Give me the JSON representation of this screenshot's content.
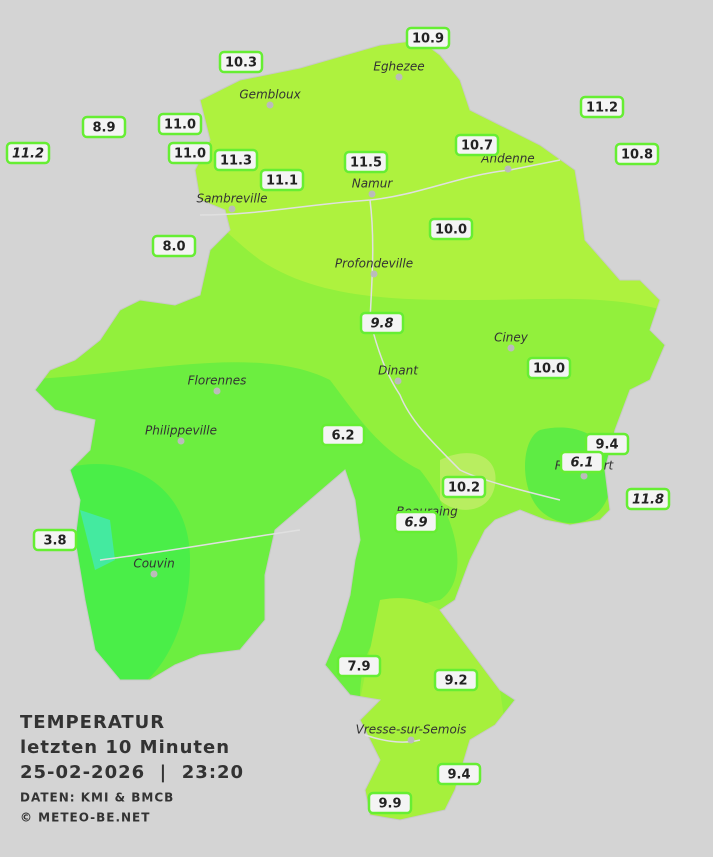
{
  "legend": {
    "title": "TEMPERATUR",
    "period": "letzten 10 Minuten",
    "timestamp": "25-02-2026  |  23:20",
    "source": "DATEN: KMI & BMCB",
    "copyright": "© METEO-BE.NET"
  },
  "towns": [
    "Eghezee",
    "Gembloux",
    "Andenne",
    "Namur",
    "Sambreville",
    "Profondeville",
    "Ciney",
    "Dinant",
    "Florennes",
    "Philippeville",
    "Rochefort",
    "Beauraing",
    "Couvin",
    "Vresse-sur-Semois"
  ],
  "readings": [
    "10.9",
    "10.3",
    "8.9",
    "11.0",
    "11.2",
    "11.0",
    "11.3",
    "11.1",
    "11.5",
    "10.7",
    "11.2",
    "10.8",
    "10.0",
    "8.0",
    "9.8",
    "10.0",
    "6.2",
    "9.4",
    "6.1",
    "10.2",
    "11.8",
    "6.9",
    "3.8",
    "7.9",
    "9.2",
    "9.4",
    "9.9"
  ]
}
